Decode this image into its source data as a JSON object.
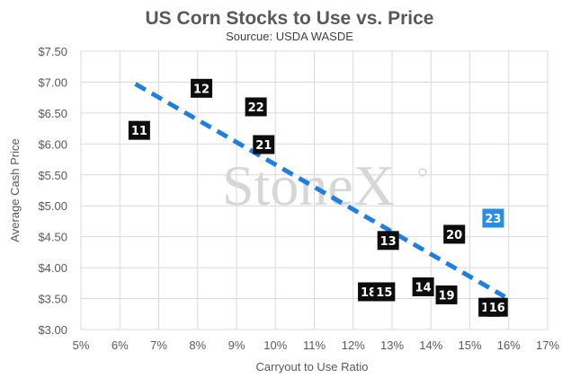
{
  "chart_data": {
    "type": "scatter",
    "title": "US Corn Stocks to Use vs. Price",
    "subtitle": "Sourcue: USDA WASDE",
    "xlabel": "Carryout to Use Ratio",
    "ylabel": "Average Cash Price",
    "xlim": [
      5,
      17
    ],
    "ylim": [
      3.0,
      7.5
    ],
    "x_ticks": [
      5,
      6,
      7,
      8,
      9,
      10,
      11,
      12,
      13,
      14,
      15,
      16,
      17
    ],
    "x_tick_labels": [
      "5%",
      "6%",
      "7%",
      "8%",
      "9%",
      "10%",
      "11%",
      "12%",
      "13%",
      "14%",
      "15%",
      "16%",
      "17%"
    ],
    "y_ticks": [
      3.0,
      3.5,
      4.0,
      4.5,
      5.0,
      5.5,
      6.0,
      6.5,
      7.0,
      7.5
    ],
    "y_tick_labels": [
      "$3.00",
      "$3.50",
      "$4.00",
      "$4.50",
      "$5.00",
      "$5.50",
      "$6.00",
      "$6.50",
      "$7.00",
      "$7.50"
    ],
    "grid": true,
    "points": [
      {
        "label": "11",
        "x": 6.5,
        "y": 6.22,
        "highlight": false
      },
      {
        "label": "12",
        "x": 8.1,
        "y": 6.9,
        "highlight": false
      },
      {
        "label": "22",
        "x": 9.5,
        "y": 6.6,
        "highlight": false
      },
      {
        "label": "21",
        "x": 9.7,
        "y": 5.99,
        "highlight": false
      },
      {
        "label": "13",
        "x": 12.9,
        "y": 4.44,
        "highlight": false
      },
      {
        "label": "20",
        "x": 14.6,
        "y": 4.54,
        "highlight": false
      },
      {
        "label": "23",
        "x": 15.6,
        "y": 4.8,
        "highlight": true
      },
      {
        "label": "18",
        "x": 12.4,
        "y": 3.61,
        "highlight": false
      },
      {
        "label": "15",
        "x": 12.8,
        "y": 3.61,
        "highlight": false
      },
      {
        "label": "14",
        "x": 13.8,
        "y": 3.69,
        "highlight": false
      },
      {
        "label": "19",
        "x": 14.4,
        "y": 3.56,
        "highlight": false
      },
      {
        "label": "17",
        "x": 15.5,
        "y": 3.36,
        "highlight": false
      },
      {
        "label": "16",
        "x": 15.7,
        "y": 3.36,
        "highlight": false
      }
    ],
    "trendline": {
      "x": [
        6.4,
        15.9
      ],
      "y": [
        6.97,
        3.53
      ],
      "style": "dashed"
    },
    "watermark": "StoneX",
    "colors": {
      "point": "#0d0d0d",
      "highlight": "#2a8de4",
      "trendline": "#1f7fe0",
      "grid": "#d9d9d9",
      "text": "#595959"
    }
  }
}
